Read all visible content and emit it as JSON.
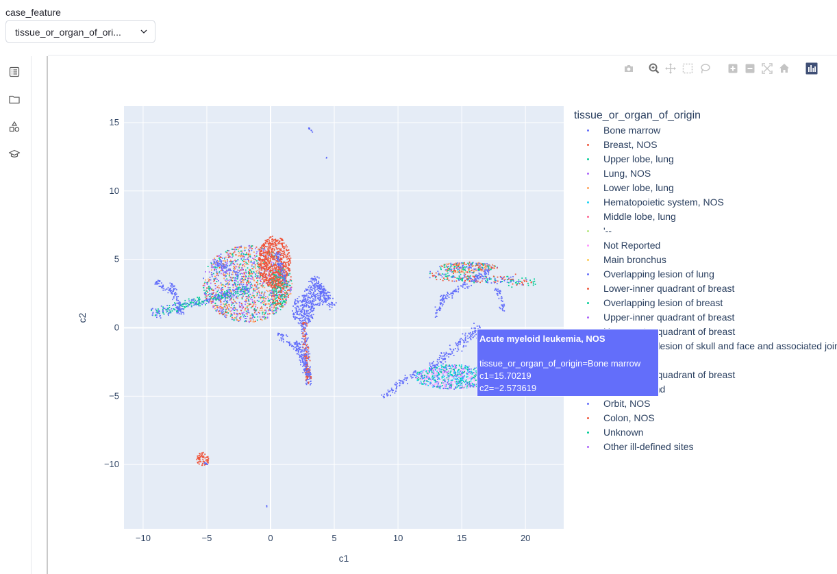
{
  "case_feature": {
    "label": "case_feature",
    "selected": "tissue_or_organ_of_ori..."
  },
  "sidebar": {
    "icons": [
      "list-icon",
      "folder-icon",
      "shapes-icon",
      "graduation-cap-icon"
    ]
  },
  "modebar": {
    "buttons": [
      "camera-icon",
      "zoom-icon",
      "pan-icon",
      "box-select-icon",
      "lasso-select-icon",
      "zoom-in-icon",
      "zoom-out-icon",
      "autoscale-icon",
      "reset-axes-icon",
      "plotly-logo-icon"
    ]
  },
  "chart_data": {
    "type": "scatter",
    "xlabel": "c1",
    "ylabel": "c2",
    "xlim": [
      -11.5,
      23
    ],
    "ylim": [
      -14.7,
      16.2
    ],
    "x_ticks": [
      -10,
      -5,
      0,
      5,
      10,
      15,
      20
    ],
    "x_tick_labels": [
      "−10",
      "−5",
      "0",
      "5",
      "10",
      "15",
      "20"
    ],
    "y_ticks": [
      -10,
      -5,
      0,
      5,
      10,
      15
    ],
    "y_tick_labels": [
      "−10",
      "−5",
      "0",
      "5",
      "10",
      "15"
    ],
    "grid": true,
    "legend_placement": "right",
    "legend_title": "tissue_or_organ_of_origin",
    "series": [
      {
        "name": "Bone marrow",
        "color": "#636efa"
      },
      {
        "name": "Breast, NOS",
        "color": "#ef553b"
      },
      {
        "name": "Upper lobe, lung",
        "color": "#00cc96"
      },
      {
        "name": "Lung, NOS",
        "color": "#ab63fa"
      },
      {
        "name": "Lower lobe, lung",
        "color": "#ffa15a"
      },
      {
        "name": "Hematopoietic system, NOS",
        "color": "#19d3f3"
      },
      {
        "name": "Middle lobe, lung",
        "color": "#ff6692"
      },
      {
        "name": "'--",
        "color": "#b6e880"
      },
      {
        "name": "Not Reported",
        "color": "#ff97ff"
      },
      {
        "name": "Main bronchus",
        "color": "#fecb52"
      },
      {
        "name": "Overlapping lesion of lung",
        "color": "#636efa"
      },
      {
        "name": "Lower-inner quadrant of breast",
        "color": "#ef553b"
      },
      {
        "name": "Overlapping lesion of breast",
        "color": "#00cc96"
      },
      {
        "name": "Upper-inner quadrant of breast",
        "color": "#ab63fa"
      },
      {
        "name": "Upper-outer quadrant of breast",
        "color": "#ffa15a"
      },
      {
        "name": "Overlapping lesion of skull and face and associated joints",
        "color": "#19d3f3"
      },
      {
        "name": "Breast",
        "color": "#ff6692"
      },
      {
        "name": "Lower-outer quadrant of breast",
        "color": "#b6e880"
      },
      {
        "name": "Prostate gland",
        "color": "#fecb52"
      },
      {
        "name": "Orbit, NOS",
        "color": "#636efa"
      },
      {
        "name": "Colon, NOS",
        "color": "#ef553b"
      },
      {
        "name": "Unknown",
        "color": "#00cc96"
      },
      {
        "name": "Other ill-defined sites",
        "color": "#ab63fa"
      }
    ],
    "legend_visible": [
      true,
      true,
      true,
      true,
      true,
      true,
      true,
      true,
      true,
      true,
      true,
      true,
      true,
      true,
      true,
      true,
      false,
      true,
      true,
      true,
      true,
      true,
      true
    ],
    "clusters": [
      {
        "shape": "blob",
        "cx": -1.8,
        "cy": 3.2,
        "rx": 3.5,
        "ry": 2.8,
        "n": 1500,
        "colors": [
          "#636efa",
          "#00cc96",
          "#ffa15a",
          "#ef553b",
          "#ab63fa"
        ]
      },
      {
        "shape": "blob",
        "cx": 0.3,
        "cy": 4.8,
        "rx": 1.3,
        "ry": 1.9,
        "n": 650,
        "colors": [
          "#ef553b"
        ]
      },
      {
        "shape": "blob",
        "cx": 0.7,
        "cy": 3.0,
        "rx": 0.7,
        "ry": 1.5,
        "n": 200,
        "colors": [
          "#ef553b",
          "#00cc96"
        ]
      },
      {
        "shape": "line",
        "x0": -9.3,
        "y0": 1.0,
        "x1": -1.8,
        "y1": 2.8,
        "width": 0.35,
        "n": 320,
        "colors": [
          "#636efa",
          "#00cc96"
        ]
      },
      {
        "shape": "line",
        "x0": -7.8,
        "y0": 3.3,
        "x1": -7.0,
        "y1": 0.9,
        "width": 0.3,
        "n": 80,
        "colors": [
          "#636efa"
        ]
      },
      {
        "shape": "line",
        "x0": -9.0,
        "y0": 3.4,
        "x1": -7.8,
        "y1": 2.6,
        "width": 0.2,
        "n": 40,
        "colors": [
          "#636efa"
        ]
      },
      {
        "shape": "line",
        "x0": -4.5,
        "y0": 4.9,
        "x1": -2.5,
        "y1": 3.8,
        "width": 0.25,
        "n": 60,
        "colors": [
          "#636efa"
        ]
      },
      {
        "shape": "line",
        "x0": 0.5,
        "y0": 5.5,
        "x1": 1.2,
        "y1": 3.2,
        "width": 0.2,
        "n": 60,
        "colors": [
          "#636efa"
        ]
      },
      {
        "shape": "blob",
        "cx": 2.6,
        "cy": 1.3,
        "rx": 0.9,
        "ry": 1.1,
        "n": 220,
        "colors": [
          "#636efa"
        ]
      },
      {
        "shape": "blob",
        "cx": 3.6,
        "cy": 2.4,
        "rx": 1.0,
        "ry": 0.8,
        "n": 160,
        "colors": [
          "#636efa"
        ]
      },
      {
        "shape": "line",
        "x0": 3.2,
        "y0": 3.6,
        "x1": 4.9,
        "y1": 1.5,
        "width": 0.4,
        "n": 120,
        "colors": [
          "#636efa"
        ]
      },
      {
        "shape": "line",
        "x0": 2.6,
        "y0": 0.4,
        "x1": 3.0,
        "y1": -4.2,
        "width": 0.25,
        "n": 220,
        "colors": [
          "#636efa",
          "#ef553b"
        ]
      },
      {
        "shape": "line",
        "x0": 0.6,
        "y0": -0.4,
        "x1": 2.4,
        "y1": -1.8,
        "width": 0.3,
        "n": 60,
        "colors": [
          "#636efa"
        ]
      },
      {
        "shape": "line",
        "x0": 2.0,
        "y0": -1.0,
        "x1": 3.0,
        "y1": -3.5,
        "width": 0.35,
        "n": 100,
        "colors": [
          "#636efa"
        ]
      },
      {
        "shape": "blob",
        "cx": 15.5,
        "cy": 4.4,
        "rx": 2.3,
        "ry": 0.4,
        "n": 260,
        "colors": [
          "#636efa",
          "#ef553b",
          "#00cc96",
          "#ffa15a"
        ]
      },
      {
        "shape": "line",
        "x0": 12.5,
        "y0": 3.8,
        "x1": 20.8,
        "y1": 3.3,
        "width": 0.35,
        "n": 220,
        "colors": [
          "#636efa",
          "#ef553b",
          "#00cc96"
        ]
      },
      {
        "shape": "line",
        "x0": 13.3,
        "y0": 2.0,
        "x1": 17.2,
        "y1": 4.2,
        "width": 0.25,
        "n": 110,
        "colors": [
          "#636efa"
        ]
      },
      {
        "shape": "line",
        "x0": 13.8,
        "y0": 2.3,
        "x1": 12.8,
        "y1": 0.8,
        "width": 0.2,
        "n": 40,
        "colors": [
          "#636efa"
        ]
      },
      {
        "shape": "line",
        "x0": 17.8,
        "y0": 2.9,
        "x1": 18.3,
        "y1": 1.2,
        "width": 0.2,
        "n": 40,
        "colors": [
          "#636efa"
        ]
      },
      {
        "shape": "blob",
        "cx": 14.3,
        "cy": -3.6,
        "rx": 3.0,
        "ry": 0.9,
        "n": 700,
        "colors": [
          "#636efa",
          "#19d3f3",
          "#00cc96",
          "#ff97ff"
        ]
      },
      {
        "shape": "line",
        "x0": 8.8,
        "y0": -5.1,
        "x1": 11.5,
        "y1": -3.2,
        "width": 0.25,
        "n": 70,
        "colors": [
          "#636efa"
        ]
      },
      {
        "shape": "line",
        "x0": 12.5,
        "y0": -3.0,
        "x1": 16.5,
        "y1": 0.0,
        "width": 0.4,
        "n": 160,
        "colors": [
          "#636efa"
        ]
      },
      {
        "shape": "blob",
        "cx": -5.3,
        "cy": -9.6,
        "rx": 0.5,
        "ry": 0.5,
        "n": 70,
        "colors": [
          "#ef553b"
        ]
      },
      {
        "shape": "line",
        "x0": -5.2,
        "y0": -9.9,
        "x1": -4.9,
        "y1": -10.0,
        "width": 0.05,
        "n": 8,
        "colors": [
          "#636efa"
        ]
      },
      {
        "shape": "line",
        "x0": 3.0,
        "y0": 14.6,
        "x1": 3.3,
        "y1": 14.3,
        "width": 0.05,
        "n": 10,
        "colors": [
          "#636efa"
        ]
      },
      {
        "shape": "line",
        "x0": 4.4,
        "y0": 12.4,
        "x1": 4.4,
        "y1": 12.5,
        "width": 0.02,
        "n": 2,
        "colors": [
          "#636efa"
        ]
      },
      {
        "shape": "line",
        "x0": -0.3,
        "y0": -13.1,
        "x1": -0.3,
        "y1": -13.0,
        "width": 0.02,
        "n": 2,
        "colors": [
          "#636efa"
        ]
      }
    ]
  },
  "tooltip": {
    "title": "Acute myeloid leukemia, NOS",
    "line1": "tissue_or_organ_of_origin=Bone marrow",
    "line2": "c1=15.70219",
    "line3": "c2=−2.573619"
  }
}
